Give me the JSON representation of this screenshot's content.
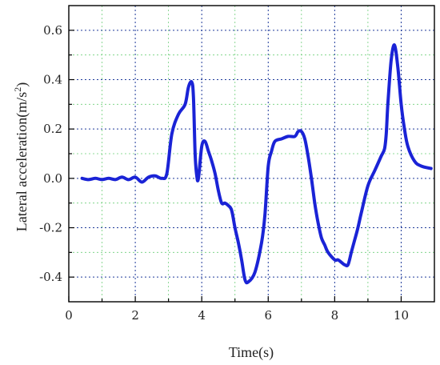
{
  "chart_data": {
    "type": "line",
    "title": "",
    "xlabel": "Time(s)",
    "ylabel_main": "Lateral acceleration(m/s",
    "ylabel_sup": "2",
    "ylabel_end": ")",
    "xlim": [
      0,
      11
    ],
    "ylim": [
      -0.5,
      0.7
    ],
    "xticks": [
      0,
      2,
      4,
      6,
      8,
      10
    ],
    "xtick_labels": [
      "0",
      "2",
      "4",
      "6",
      "8",
      "10"
    ],
    "yticks": [
      0.6,
      0.4,
      0.2,
      0.0,
      -0.2,
      -0.4
    ],
    "ytick_labels": [
      "0.6",
      "0.4",
      "0.2",
      "0.0",
      "-0.2",
      "-0.4"
    ],
    "grid": true,
    "line_color": "#1a23d6",
    "major_grid_color": "#1e3a9a",
    "minor_grid_color": "#6fcf7a",
    "series": [
      {
        "x": [
          0.4,
          0.6,
          0.8,
          1.0,
          1.2,
          1.4,
          1.6,
          1.8,
          2.0,
          2.2,
          2.4,
          2.6,
          2.8,
          2.95,
          3.1,
          3.3,
          3.5,
          3.6,
          3.7,
          3.75,
          3.8,
          3.85,
          3.9,
          4.0,
          4.1,
          4.2,
          4.3,
          4.4,
          4.5,
          4.6,
          4.7,
          4.8,
          4.9,
          5.0,
          5.1,
          5.2,
          5.3,
          5.4,
          5.6,
          5.8,
          5.9,
          6.0,
          6.1,
          6.2,
          6.4,
          6.6,
          6.8,
          6.9,
          7.0,
          7.1,
          7.2,
          7.3,
          7.4,
          7.5,
          7.6,
          7.7,
          7.8,
          8.0,
          8.1,
          8.2,
          8.3,
          8.4,
          8.5,
          8.6,
          8.7,
          8.8,
          9.0,
          9.2,
          9.4,
          9.5,
          9.55,
          9.6,
          9.7,
          9.8,
          9.9,
          10.0,
          10.1,
          10.2,
          10.4,
          10.6,
          10.9
        ],
        "y": [
          0.0,
          -0.005,
          0.0,
          -0.005,
          0.0,
          -0.005,
          0.005,
          -0.005,
          0.005,
          -0.015,
          0.005,
          0.01,
          0.0,
          0.02,
          0.18,
          0.26,
          0.3,
          0.37,
          0.39,
          0.33,
          0.1,
          0.01,
          0.0,
          0.13,
          0.15,
          0.11,
          0.07,
          0.02,
          -0.05,
          -0.1,
          -0.1,
          -0.11,
          -0.13,
          -0.2,
          -0.26,
          -0.33,
          -0.41,
          -0.42,
          -0.38,
          -0.26,
          -0.15,
          0.05,
          0.11,
          0.15,
          0.16,
          0.17,
          0.17,
          0.19,
          0.19,
          0.16,
          0.09,
          0.0,
          -0.1,
          -0.18,
          -0.24,
          -0.27,
          -0.3,
          -0.33,
          -0.33,
          -0.34,
          -0.35,
          -0.35,
          -0.3,
          -0.25,
          -0.2,
          -0.14,
          -0.03,
          0.03,
          0.09,
          0.12,
          0.18,
          0.3,
          0.48,
          0.54,
          0.45,
          0.3,
          0.2,
          0.13,
          0.07,
          0.05,
          0.04
        ]
      }
    ]
  }
}
